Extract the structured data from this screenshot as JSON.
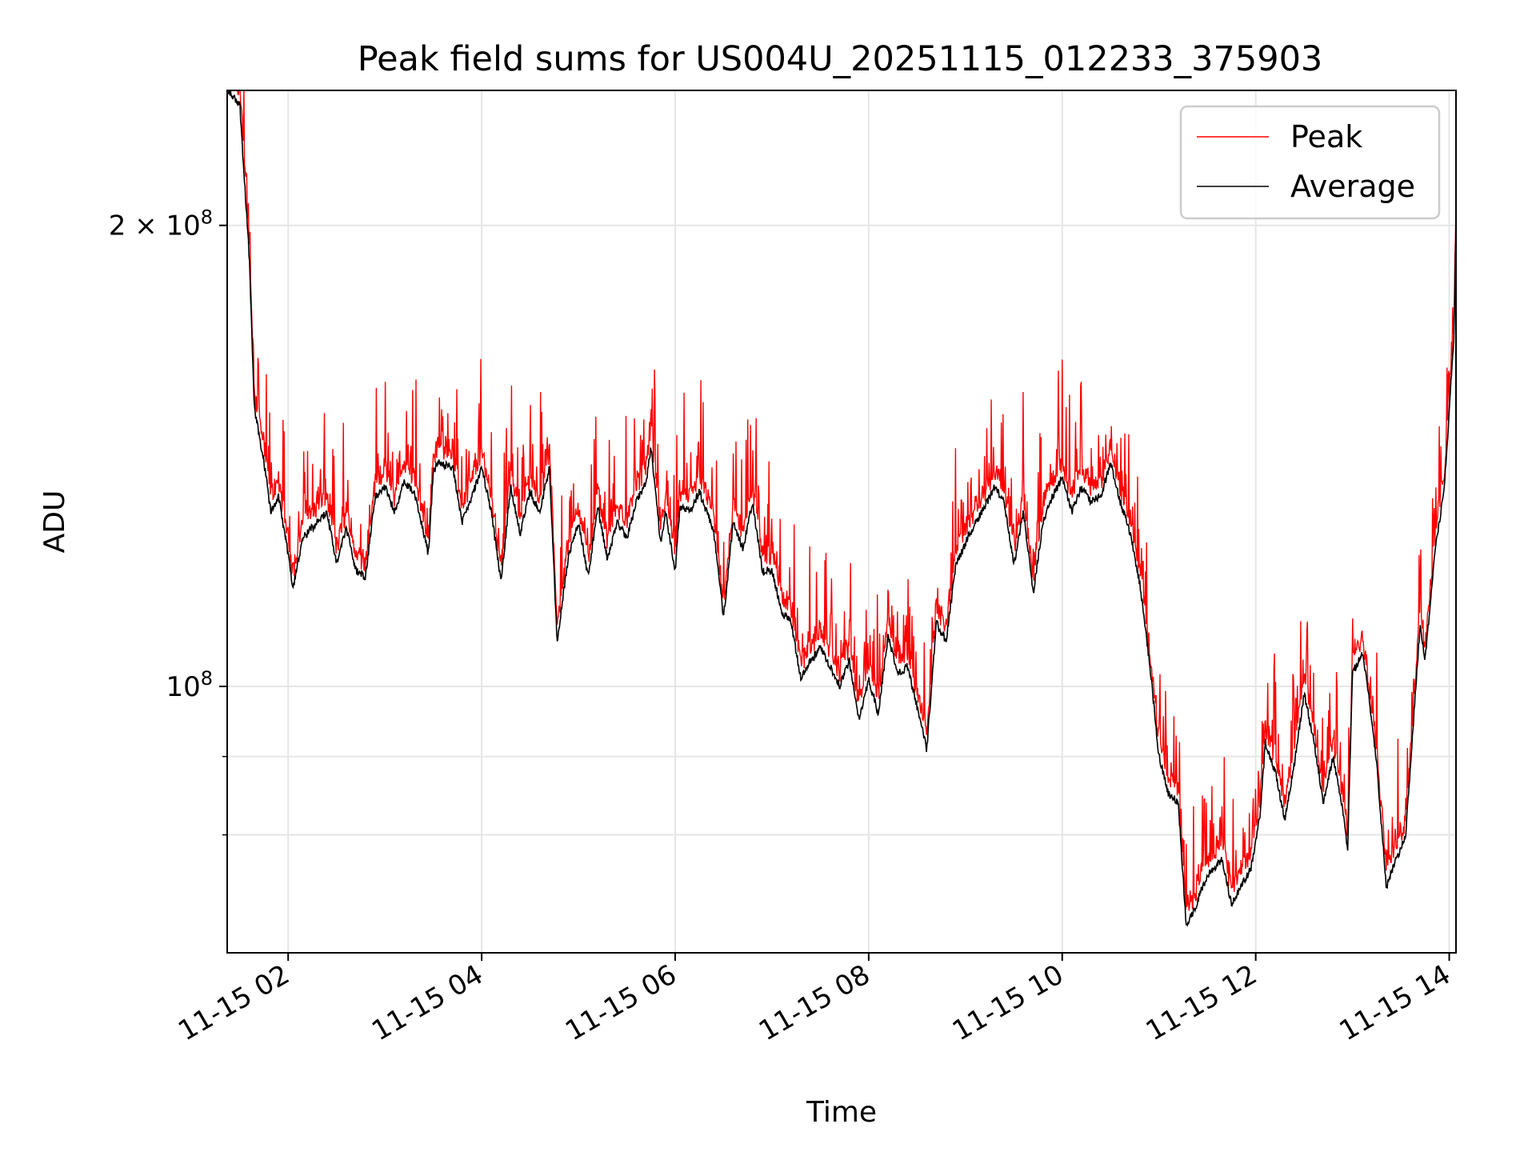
{
  "chart_data": {
    "type": "line",
    "title": "Peak field sums for US004U_20251115_012233_375903",
    "xlabel": "Time",
    "ylabel": "ADU",
    "yscale": "log",
    "ylim": [
      67000000,
      245000000
    ],
    "xlim_hours": [
      1.37,
      14.07
    ],
    "grid": true,
    "legend_position": "upper right",
    "x_tick_labels": [
      "11-15 02",
      "11-15 04",
      "11-15 06",
      "11-15 08",
      "11-15 10",
      "11-15 12",
      "11-15 14"
    ],
    "x_tick_hours": [
      2,
      4,
      6,
      8,
      10,
      12,
      14
    ],
    "y_tick_labels": [
      {
        "value": 200000000,
        "mantissa": "2 × 10",
        "exponent": "8"
      },
      {
        "value": 100000000,
        "mantissa": "10",
        "exponent": "8"
      }
    ],
    "y_minor_ticks": [
      80000000,
      90000000
    ],
    "x_tick_rotation_deg": -30,
    "series": [
      {
        "name": "Peak",
        "color": "#ff0000"
      },
      {
        "name": "Average",
        "color": "#000000",
        "x_hours": [
          1.37,
          1.5,
          1.6,
          1.65,
          1.75,
          1.82,
          1.9,
          2.0,
          2.05,
          2.15,
          2.3,
          2.4,
          2.5,
          2.6,
          2.7,
          2.8,
          2.9,
          3.0,
          3.1,
          3.2,
          3.3,
          3.45,
          3.5,
          3.55,
          3.7,
          3.8,
          3.9,
          4.0,
          4.1,
          4.2,
          4.3,
          4.4,
          4.5,
          4.6,
          4.7,
          4.78,
          4.9,
          5.0,
          5.1,
          5.2,
          5.3,
          5.4,
          5.5,
          5.6,
          5.7,
          5.75,
          5.85,
          5.9,
          6.0,
          6.05,
          6.15,
          6.25,
          6.4,
          6.5,
          6.6,
          6.7,
          6.8,
          6.9,
          7.0,
          7.1,
          7.2,
          7.3,
          7.4,
          7.5,
          7.6,
          7.7,
          7.8,
          7.9,
          8.0,
          8.1,
          8.2,
          8.3,
          8.4,
          8.5,
          8.6,
          8.7,
          8.8,
          8.9,
          9.0,
          9.1,
          9.2,
          9.3,
          9.4,
          9.5,
          9.6,
          9.7,
          9.8,
          9.9,
          10.0,
          10.1,
          10.2,
          10.3,
          10.4,
          10.5,
          10.6,
          10.7,
          10.8,
          10.9,
          11.0,
          11.1,
          11.2,
          11.28,
          11.35,
          11.45,
          11.55,
          11.65,
          11.75,
          11.85,
          11.95,
          12.05,
          12.1,
          12.2,
          12.3,
          12.4,
          12.5,
          12.6,
          12.7,
          12.8,
          12.9,
          12.95,
          13.0,
          13.1,
          13.15,
          13.25,
          13.35,
          13.45,
          13.55,
          13.7,
          13.75,
          13.85,
          13.95,
          14.05,
          14.07
        ],
        "values": [
          245000000,
          240000000,
          190000000,
          152000000,
          140000000,
          130000000,
          133000000,
          122000000,
          116000000,
          125000000,
          128000000,
          130000000,
          120000000,
          127000000,
          119000000,
          118000000,
          133000000,
          135000000,
          130000000,
          136000000,
          134000000,
          122000000,
          138000000,
          140000000,
          139000000,
          128000000,
          133000000,
          139000000,
          130000000,
          117000000,
          135000000,
          126000000,
          134000000,
          130000000,
          139000000,
          107000000,
          122000000,
          128000000,
          118000000,
          131000000,
          121000000,
          128000000,
          125000000,
          132000000,
          136000000,
          143000000,
          124000000,
          130000000,
          119000000,
          131000000,
          130000000,
          134000000,
          126000000,
          111000000,
          128000000,
          123000000,
          132000000,
          119000000,
          119000000,
          112000000,
          110000000,
          101000000,
          104000000,
          106000000,
          103000000,
          100000000,
          104000000,
          95000000,
          101000000,
          96000000,
          108000000,
          102000000,
          103000000,
          97000000,
          91000000,
          110000000,
          107000000,
          120000000,
          124000000,
          128000000,
          131000000,
          135000000,
          132000000,
          120000000,
          130000000,
          115000000,
          128000000,
          133000000,
          137000000,
          130000000,
          135000000,
          132000000,
          133000000,
          140000000,
          132000000,
          126000000,
          117000000,
          104000000,
          90000000,
          85000000,
          84000000,
          70000000,
          71000000,
          74000000,
          76000000,
          77000000,
          72000000,
          74000000,
          76000000,
          83000000,
          92000000,
          88000000,
          82000000,
          89000000,
          99000000,
          92000000,
          84000000,
          90000000,
          83000000,
          78000000,
          102000000,
          105000000,
          101000000,
          89000000,
          74000000,
          77000000,
          80000000,
          110000000,
          104000000,
          122000000,
          135000000,
          170000000,
          200000000
        ]
      }
    ]
  }
}
